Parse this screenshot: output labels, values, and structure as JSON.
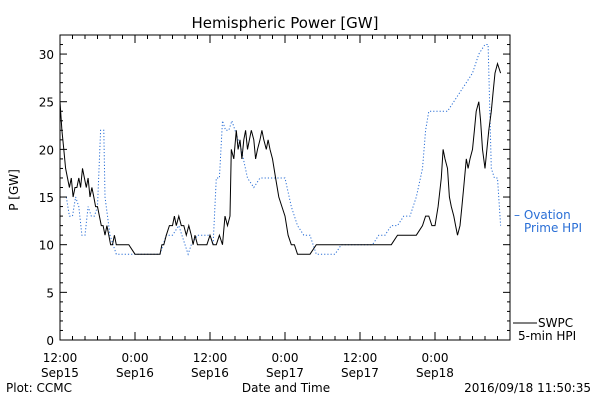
{
  "chart_data": {
    "type": "line",
    "title": "Hemispheric Power [GW]",
    "xlabel": "Date and Time",
    "ylabel": "P [GW]",
    "ylim": [
      0,
      32
    ],
    "yticks": [
      0,
      5,
      10,
      15,
      20,
      25,
      30
    ],
    "x_unit": "hours",
    "xlim": [
      0,
      72
    ],
    "xtick_labels": [
      {
        "x": 0,
        "line1": "12:00",
        "line2": "Sep15"
      },
      {
        "x": 12,
        "line1": "0:00",
        "line2": "Sep16"
      },
      {
        "x": 24,
        "line1": "12:00",
        "line2": "Sep16"
      },
      {
        "x": 36,
        "line1": "0:00",
        "line2": "Sep17"
      },
      {
        "x": 48,
        "line1": "12:00",
        "line2": "Sep17"
      },
      {
        "x": 60,
        "line1": "0:00",
        "line2": "Sep18"
      }
    ],
    "grid": false,
    "footer_left": "Plot: CCMC",
    "footer_right": "2016/09/18 11:50:35",
    "series": [
      {
        "name_line1": "SWPC",
        "name_line2": "5-min HPI",
        "color": "#000000",
        "style": "solid",
        "points": [
          [
            0,
            25
          ],
          [
            0.3,
            22
          ],
          [
            0.6,
            20
          ],
          [
            0.9,
            18
          ],
          [
            1.2,
            17
          ],
          [
            1.5,
            16
          ],
          [
            1.8,
            17
          ],
          [
            2.1,
            15
          ],
          [
            2.4,
            16
          ],
          [
            2.7,
            16
          ],
          [
            3.0,
            17
          ],
          [
            3.3,
            16
          ],
          [
            3.6,
            18
          ],
          [
            3.9,
            17
          ],
          [
            4.2,
            16
          ],
          [
            4.5,
            17
          ],
          [
            4.8,
            15
          ],
          [
            5.1,
            16
          ],
          [
            5.4,
            15
          ],
          [
            5.7,
            14
          ],
          [
            6.0,
            14
          ],
          [
            6.3,
            13
          ],
          [
            6.6,
            12
          ],
          [
            6.9,
            12
          ],
          [
            7.2,
            11
          ],
          [
            7.5,
            12
          ],
          [
            7.8,
            11
          ],
          [
            8.1,
            10
          ],
          [
            8.4,
            10
          ],
          [
            8.7,
            11
          ],
          [
            9.0,
            10
          ],
          [
            9.5,
            10
          ],
          [
            10,
            10
          ],
          [
            11,
            10
          ],
          [
            12,
            9
          ],
          [
            13,
            9
          ],
          [
            14,
            9
          ],
          [
            15,
            9
          ],
          [
            16,
            9
          ],
          [
            16.3,
            10
          ],
          [
            16.6,
            10
          ],
          [
            17,
            11
          ],
          [
            17.5,
            12
          ],
          [
            18,
            12
          ],
          [
            18.3,
            13
          ],
          [
            18.6,
            12
          ],
          [
            19,
            13
          ],
          [
            19.4,
            12
          ],
          [
            19.8,
            12
          ],
          [
            20.2,
            11
          ],
          [
            20.6,
            12
          ],
          [
            21,
            11
          ],
          [
            21.3,
            10
          ],
          [
            21.6,
            11
          ],
          [
            22,
            10
          ],
          [
            22.5,
            10
          ],
          [
            23,
            10
          ],
          [
            23.5,
            10
          ],
          [
            24,
            11
          ],
          [
            24.5,
            10
          ],
          [
            25,
            10
          ],
          [
            25.5,
            11
          ],
          [
            26,
            10
          ],
          [
            26.4,
            13
          ],
          [
            26.8,
            12
          ],
          [
            27.2,
            13
          ],
          [
            27.4,
            20
          ],
          [
            27.8,
            19
          ],
          [
            28.2,
            22
          ],
          [
            28.5,
            20
          ],
          [
            28.8,
            21
          ],
          [
            29.1,
            19
          ],
          [
            29.4,
            21
          ],
          [
            29.7,
            22
          ],
          [
            30,
            20
          ],
          [
            30.3,
            21
          ],
          [
            30.6,
            22
          ],
          [
            31,
            21
          ],
          [
            31.3,
            19
          ],
          [
            31.6,
            20
          ],
          [
            32,
            21
          ],
          [
            32.3,
            22
          ],
          [
            32.6,
            21
          ],
          [
            33,
            20
          ],
          [
            33.3,
            21
          ],
          [
            33.6,
            20
          ],
          [
            34,
            19
          ],
          [
            34.5,
            17
          ],
          [
            35,
            15
          ],
          [
            35.5,
            14
          ],
          [
            36,
            13
          ],
          [
            36.5,
            11
          ],
          [
            37,
            10
          ],
          [
            37.5,
            10
          ],
          [
            38,
            9
          ],
          [
            39,
            9
          ],
          [
            40,
            9
          ],
          [
            41,
            10
          ],
          [
            42,
            10
          ],
          [
            43,
            10
          ],
          [
            44,
            10
          ],
          [
            45,
            10
          ],
          [
            46,
            10
          ],
          [
            47,
            10
          ],
          [
            48,
            10
          ],
          [
            49,
            10
          ],
          [
            50,
            10
          ],
          [
            51,
            10
          ],
          [
            52,
            10
          ],
          [
            53,
            10
          ],
          [
            54,
            11
          ],
          [
            55,
            11
          ],
          [
            56,
            11
          ],
          [
            57,
            11
          ],
          [
            58,
            12
          ],
          [
            58.5,
            13
          ],
          [
            59,
            13
          ],
          [
            59.5,
            12
          ],
          [
            60,
            12
          ],
          [
            60.5,
            14
          ],
          [
            61,
            17
          ],
          [
            61.3,
            20
          ],
          [
            61.6,
            19
          ],
          [
            62,
            18
          ],
          [
            62.3,
            15
          ],
          [
            62.6,
            14
          ],
          [
            63,
            13
          ],
          [
            63.3,
            12
          ],
          [
            63.6,
            11
          ],
          [
            64,
            12
          ],
          [
            64.3,
            14
          ],
          [
            64.6,
            16
          ],
          [
            65,
            19
          ],
          [
            65.3,
            18
          ],
          [
            65.6,
            19
          ],
          [
            66,
            20
          ],
          [
            66.3,
            22
          ],
          [
            66.6,
            24
          ],
          [
            67,
            25
          ],
          [
            67.3,
            23
          ],
          [
            67.6,
            20
          ],
          [
            68,
            18
          ],
          [
            68.3,
            20
          ],
          [
            68.6,
            22
          ],
          [
            69,
            24
          ],
          [
            69.3,
            26
          ],
          [
            69.6,
            28
          ],
          [
            70,
            29
          ],
          [
            70.5,
            28
          ]
        ]
      },
      {
        "name_line1": "– Ovation",
        "name_line2": "Prime HPI",
        "color": "#2a6fd6",
        "style": "dotted",
        "points": [
          [
            0,
            15
          ],
          [
            1.0,
            15
          ],
          [
            1.5,
            13
          ],
          [
            2.0,
            13
          ],
          [
            2.5,
            15
          ],
          [
            3.0,
            14
          ],
          [
            3.5,
            11
          ],
          [
            4.0,
            11
          ],
          [
            4.5,
            14
          ],
          [
            5.0,
            13
          ],
          [
            5.5,
            13
          ],
          [
            6.0,
            14
          ],
          [
            6.5,
            22
          ],
          [
            7.0,
            22
          ],
          [
            7.2,
            15
          ],
          [
            7.6,
            13
          ],
          [
            8.0,
            11
          ],
          [
            8.5,
            10
          ],
          [
            9.0,
            9
          ],
          [
            10,
            9
          ],
          [
            11,
            9
          ],
          [
            12,
            9
          ],
          [
            13,
            9
          ],
          [
            14,
            9
          ],
          [
            15,
            9
          ],
          [
            16,
            9
          ],
          [
            16.5,
            10
          ],
          [
            17,
            11
          ],
          [
            18,
            11
          ],
          [
            19,
            12
          ],
          [
            20,
            10
          ],
          [
            20.5,
            9
          ],
          [
            21,
            10
          ],
          [
            22,
            11
          ],
          [
            23,
            11
          ],
          [
            24,
            11
          ],
          [
            24.5,
            10
          ],
          [
            25,
            17
          ],
          [
            25.5,
            17
          ],
          [
            26,
            23
          ],
          [
            26.5,
            22
          ],
          [
            27,
            22
          ],
          [
            27.5,
            23
          ],
          [
            28,
            22
          ],
          [
            29,
            20
          ],
          [
            30,
            17
          ],
          [
            31,
            16
          ],
          [
            32,
            17
          ],
          [
            33,
            17
          ],
          [
            34,
            17
          ],
          [
            35,
            17
          ],
          [
            36,
            17
          ],
          [
            37,
            14
          ],
          [
            38,
            12
          ],
          [
            39,
            11
          ],
          [
            40,
            11
          ],
          [
            40.5,
            10
          ],
          [
            41,
            9
          ],
          [
            42,
            9
          ],
          [
            43,
            9
          ],
          [
            44,
            9
          ],
          [
            45,
            10
          ],
          [
            46,
            10
          ],
          [
            47,
            10
          ],
          [
            48,
            10
          ],
          [
            49,
            10
          ],
          [
            50,
            10
          ],
          [
            51,
            11
          ],
          [
            52,
            11
          ],
          [
            53,
            12
          ],
          [
            54,
            12
          ],
          [
            55,
            13
          ],
          [
            56,
            13
          ],
          [
            57,
            15
          ],
          [
            58,
            18
          ],
          [
            58.5,
            22
          ],
          [
            59,
            24
          ],
          [
            60,
            24
          ],
          [
            61,
            24
          ],
          [
            62,
            24
          ],
          [
            63,
            25
          ],
          [
            64,
            26
          ],
          [
            65,
            27
          ],
          [
            66,
            28
          ],
          [
            67,
            30
          ],
          [
            68,
            31
          ],
          [
            68.5,
            31
          ],
          [
            69,
            18
          ],
          [
            69.5,
            17
          ],
          [
            70,
            17
          ],
          [
            70.5,
            12
          ]
        ]
      }
    ]
  }
}
